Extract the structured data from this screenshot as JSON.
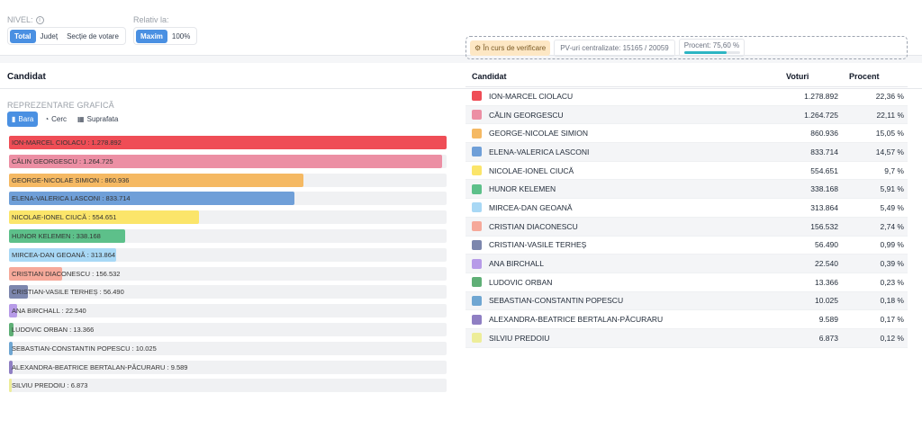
{
  "filters": {
    "nivel_label": "NIVEL:",
    "nivel_options": [
      "Total",
      "Județ",
      "Secție de votare"
    ],
    "relativ_label": "Relativ la:",
    "relativ_options": [
      "Maxim",
      "100%"
    ]
  },
  "section": {
    "title": "Candidat",
    "chart_label": "REPREZENTARE GRAFICĂ",
    "tabs": [
      "Bara",
      "Cerc",
      "Suprafata"
    ]
  },
  "status": {
    "badge": "În curs de verificare",
    "pv": "PV-uri centralizate: 15165 / 20059",
    "procent": "Procent: 75,60 %",
    "procent_value": 75.6
  },
  "table": {
    "headers": [
      "Candidat",
      "Voturi",
      "Procent"
    ]
  },
  "colors": [
    "#ef4d56",
    "#ec8fa4",
    "#f5b963",
    "#6f9fd8",
    "#fbe56a",
    "#5dc08a",
    "#a8d8f5",
    "#f6a99a",
    "#7c86ad",
    "#b79be8",
    "#5faf76",
    "#6fa6d2",
    "#8f7fc3",
    "#eded99"
  ],
  "chart_data": {
    "type": "bar",
    "categories": [
      "ION-MARCEL CIOLACU",
      "CĂLIN GEORGESCU",
      "GEORGE-NICOLAE SIMION",
      "ELENA-VALERICA LASCONI",
      "NICOLAE-IONEL CIUCĂ",
      "HUNOR KELEMEN",
      "MIRCEA-DAN GEOANĂ",
      "CRISTIAN DIACONESCU",
      "CRISTIAN-VASILE TERHEȘ",
      "ANA BIRCHALL",
      "LUDOVIC ORBAN",
      "SEBASTIAN-CONSTANTIN POPESCU",
      "ALEXANDRA-BEATRICE BERTALAN-PĂCURARU",
      "SILVIU PREDOIU"
    ],
    "values": [
      1278892,
      1264725,
      860936,
      833714,
      554651,
      338168,
      313864,
      156532,
      56490,
      22540,
      13366,
      10025,
      9589,
      6873
    ],
    "value_labels": [
      "1.278.892",
      "1.264.725",
      "860.936",
      "833.714",
      "554.651",
      "338.168",
      "313.864",
      "156.532",
      "56.490",
      "22.540",
      "13.366",
      "10.025",
      "9.589",
      "6.873"
    ],
    "percent_labels": [
      "22,36 %",
      "22,11 %",
      "15,05 %",
      "14,57 %",
      "9,7 %",
      "5,91 %",
      "5,49 %",
      "2,74 %",
      "0,99 %",
      "0,39 %",
      "0,23 %",
      "0,18 %",
      "0,17 %",
      "0,12 %"
    ],
    "orientation": "horizontal",
    "scale": "relative to maximum"
  }
}
